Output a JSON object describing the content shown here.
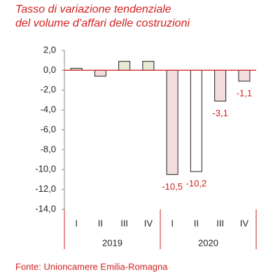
{
  "chart_data": {
    "type": "bar",
    "title": "Tasso di variazione tendenziale del volume d’affari delle costruzioni",
    "categories": [
      "I",
      "II",
      "III",
      "IV",
      "I",
      "II",
      "III",
      "IV"
    ],
    "groups": [
      "2019",
      "2020"
    ],
    "values": [
      0.2,
      -0.6,
      0.9,
      0.9,
      -10.5,
      -10.2,
      -3.1,
      -1.1
    ],
    "value_labels": [
      null,
      null,
      null,
      null,
      "-10,5",
      "-10,2",
      "-3,1",
      "-1,1"
    ],
    "colors": [
      "#e6ead5",
      "#f2dcdc",
      "#e6ead5",
      "#e6ead5",
      "#f2dcdc",
      "#ffffff",
      "#f2dcdc",
      "#f2dcdc"
    ],
    "ylim": [
      -14,
      2
    ],
    "yticks": [
      {
        "value": 2,
        "label": "2,0"
      },
      {
        "value": 0,
        "label": "0,0"
      },
      {
        "value": -2,
        "label": "-2,0"
      },
      {
        "value": -4,
        "label": "-4,0"
      },
      {
        "value": -6,
        "label": "-6,0"
      },
      {
        "value": -8,
        "label": "-8,0"
      },
      {
        "value": -10,
        "label": "-10,0"
      },
      {
        "value": -12,
        "label": "-12,0"
      },
      {
        "value": -14,
        "label": "-14,0"
      }
    ],
    "source": "Fonte: Unioncamere Emilia-Romagna"
  }
}
